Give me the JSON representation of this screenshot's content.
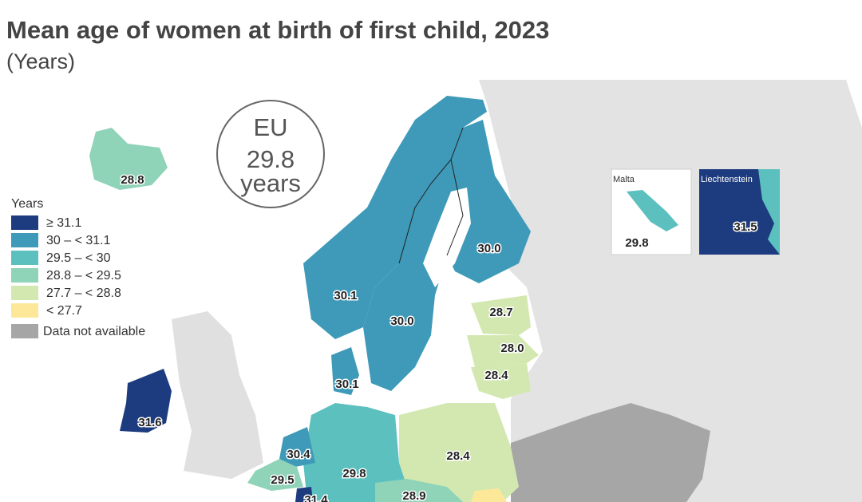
{
  "header": {
    "title": "Mean age of women at birth of first child, 2023",
    "subtitle": "(Years)"
  },
  "eu_badge": {
    "lines": [
      "EU",
      "29.8",
      "years"
    ]
  },
  "legend": {
    "title": "Years",
    "items": [
      {
        "label": "≥ 31.1",
        "color": "#1d3b7f"
      },
      {
        "label": "30 – < 31.1",
        "color": "#3e9ab8"
      },
      {
        "label": "29.5 – < 30",
        "color": "#5bc0be"
      },
      {
        "label": "28.8 – < 29.5",
        "color": "#8fd3b8"
      },
      {
        "label": "27.7 – < 28.8",
        "color": "#d3e8b0"
      },
      {
        "label": "< 27.7",
        "color": "#fde89a"
      },
      {
        "label": "Data not available",
        "color": "#a6a6a6"
      }
    ]
  },
  "map_labels": [
    "28.8",
    "31.6",
    "30.1",
    "30.0",
    "30.0",
    "30.1",
    "28.7",
    "28.0",
    "28.4",
    "28.4",
    "29.8",
    "30.4",
    "29.5",
    "31.4",
    "28.9"
  ],
  "insets": [
    {
      "title": "Malta",
      "value": "29.8"
    },
    {
      "title": "Liechtenstein",
      "value": "31.5"
    }
  ]
}
